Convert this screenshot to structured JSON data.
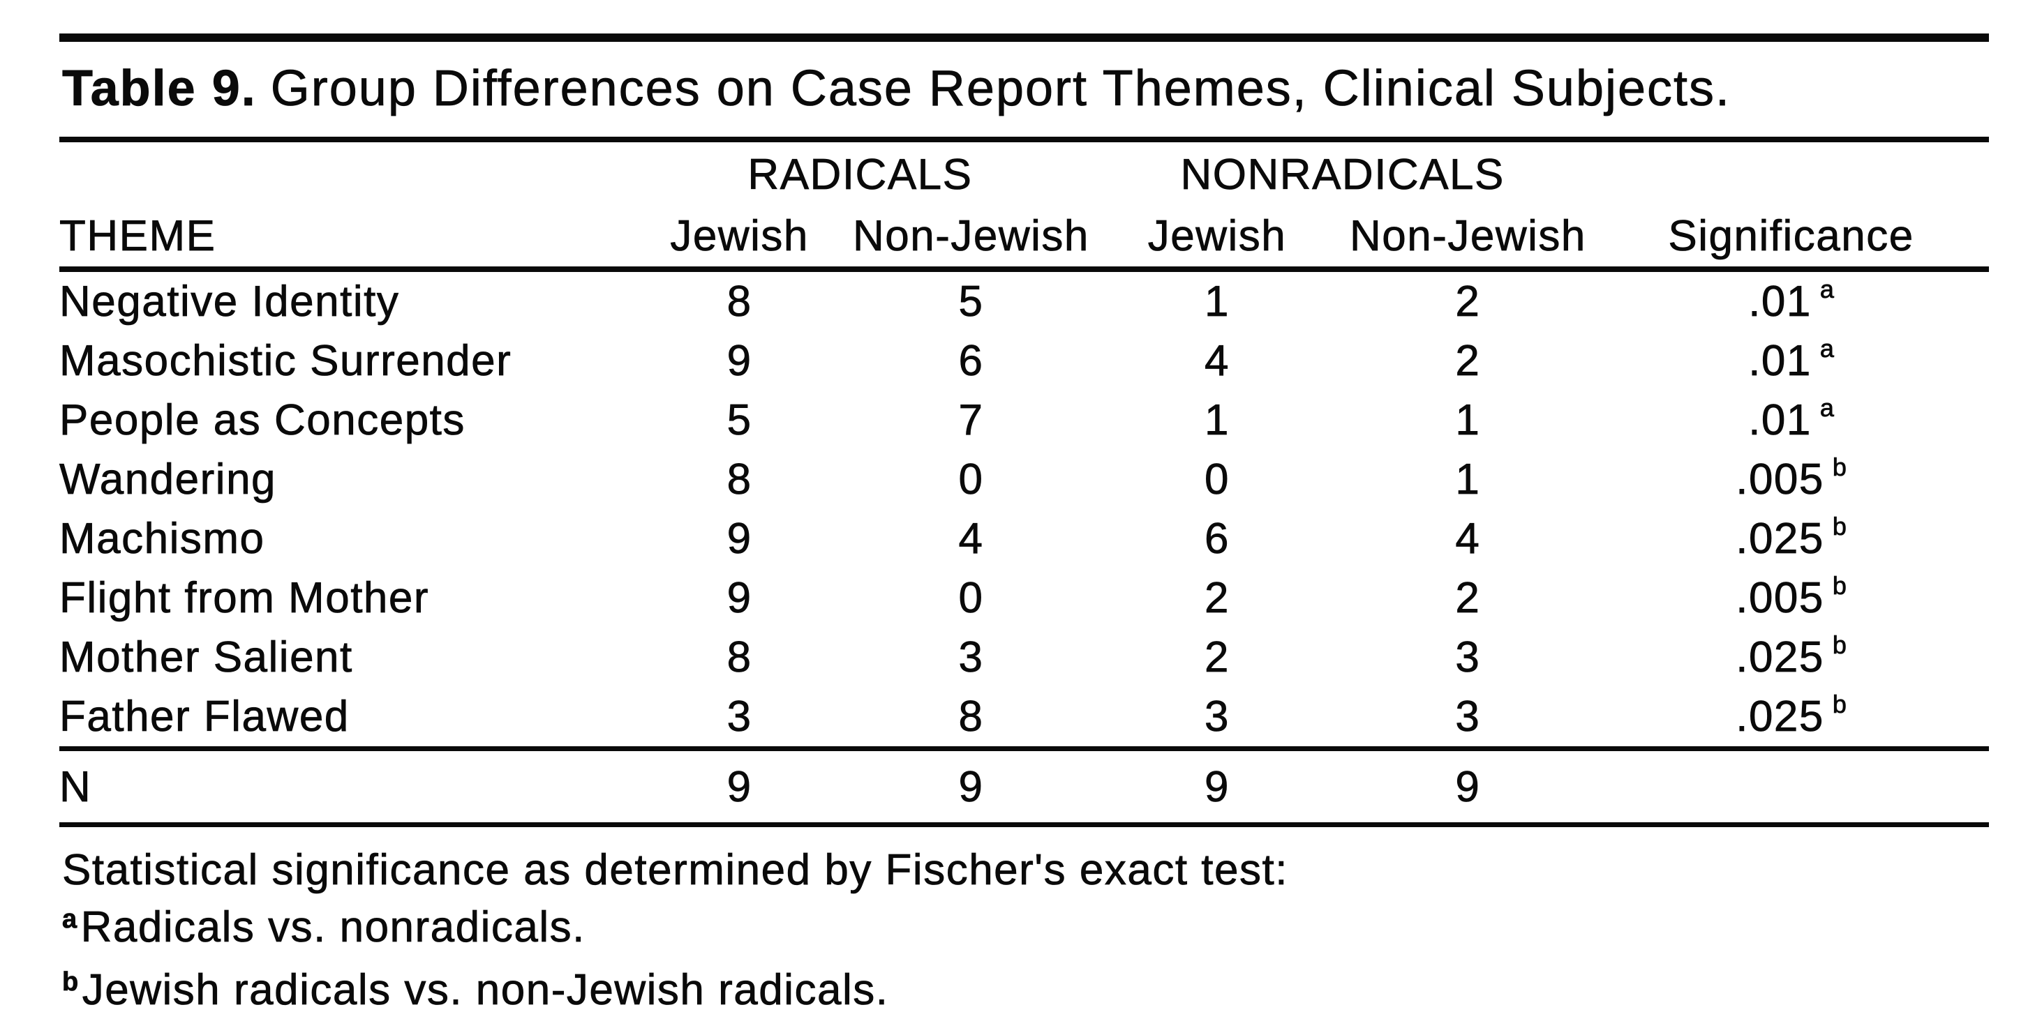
{
  "page": {
    "background": "#ffffff",
    "ink_color": "#0a0a0a"
  },
  "table": {
    "title": {
      "bold": "Table 9.",
      "rest": "Group Differences on Case Report Themes, Clinical Subjects."
    },
    "header": {
      "group_radicals": "RADICALS",
      "group_nonradicals": "NONRADICALS",
      "theme": "THEME",
      "radicals_jewish": "Jewish",
      "radicals_non_jewish": "Non-Jewish",
      "nonradicals_jewish": "Jewish",
      "nonradicals_non_jewish": "Non-Jewish",
      "significance": "Significance"
    },
    "rows": [
      {
        "theme": "Negative Identity",
        "radicals_jewish": "8",
        "radicals_non_jewish": "5",
        "nonradicals_jewish": "1",
        "nonradicals_non_jewish": "2",
        "significance": ".01",
        "significance_note": "a"
      },
      {
        "theme": "Masochistic Surrender",
        "radicals_jewish": "9",
        "radicals_non_jewish": "6",
        "nonradicals_jewish": "4",
        "nonradicals_non_jewish": "2",
        "significance": ".01",
        "significance_note": "a"
      },
      {
        "theme": "People as Concepts",
        "radicals_jewish": "5",
        "radicals_non_jewish": "7",
        "nonradicals_jewish": "1",
        "nonradicals_non_jewish": "1",
        "significance": ".01",
        "significance_note": "a"
      },
      {
        "theme": "Wandering",
        "radicals_jewish": "8",
        "radicals_non_jewish": "0",
        "nonradicals_jewish": "0",
        "nonradicals_non_jewish": "1",
        "significance": ".005",
        "significance_note": "b"
      },
      {
        "theme": "Machismo",
        "radicals_jewish": "9",
        "radicals_non_jewish": "4",
        "nonradicals_jewish": "6",
        "nonradicals_non_jewish": "4",
        "significance": ".025",
        "significance_note": "b"
      },
      {
        "theme": "Flight from Mother",
        "radicals_jewish": "9",
        "radicals_non_jewish": "0",
        "nonradicals_jewish": "2",
        "nonradicals_non_jewish": "2",
        "significance": ".005",
        "significance_note": "b"
      },
      {
        "theme": "Mother Salient",
        "radicals_jewish": "8",
        "radicals_non_jewish": "3",
        "nonradicals_jewish": "2",
        "nonradicals_non_jewish": "3",
        "significance": ".025",
        "significance_note": "b"
      },
      {
        "theme": "Father Flawed",
        "radicals_jewish": "3",
        "radicals_non_jewish": "8",
        "nonradicals_jewish": "3",
        "nonradicals_non_jewish": "3",
        "significance": ".025",
        "significance_note": "b"
      }
    ],
    "n_row": {
      "theme": "N",
      "radicals_jewish": "9",
      "radicals_non_jewish": "9",
      "nonradicals_jewish": "9",
      "nonradicals_non_jewish": "9",
      "significance": ""
    },
    "footnotes": {
      "intro": "Statistical significance as determined by Fischer's exact test:",
      "items": [
        {
          "marker": "a",
          "text": "Radicals vs. nonradicals."
        },
        {
          "marker": "b",
          "text": "Jewish radicals vs. non-Jewish radicals."
        }
      ]
    }
  }
}
